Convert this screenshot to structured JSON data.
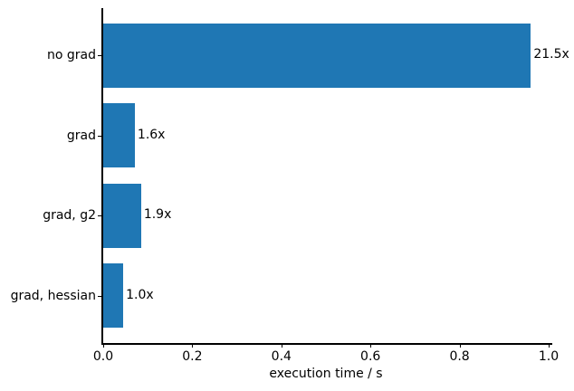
{
  "figure": {
    "background": "#ffffff",
    "text_color": "#000000"
  },
  "chart_data": {
    "type": "bar",
    "orientation": "horizontal",
    "title": "",
    "xlabel": "execution time / s",
    "ylabel": "",
    "categories": [
      "no grad",
      "grad",
      "grad, g2",
      "grad, hessian"
    ],
    "values": [
      0.96,
      0.071,
      0.085,
      0.045
    ],
    "bar_labels": [
      "21.5x",
      "1.6x",
      "1.9x",
      "1.0x"
    ],
    "xlim": [
      0.0,
      1.0
    ],
    "x_ticks": [
      0.0,
      0.2,
      0.4,
      0.6,
      0.8,
      1.0
    ],
    "x_tick_labels": [
      "0.0",
      "0.2",
      "0.4",
      "0.6",
      "0.8",
      "1.0"
    ],
    "bar_color": "#1f77b4",
    "grid": false,
    "legend": null,
    "spines": [
      "left",
      "bottom"
    ]
  }
}
